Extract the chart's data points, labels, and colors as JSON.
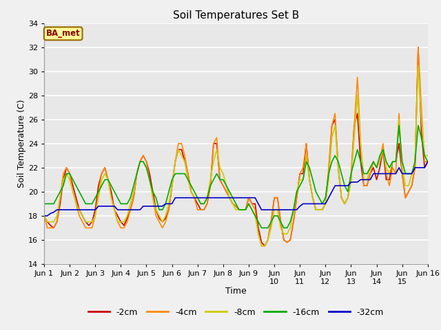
{
  "title": "Soil Temperatures Set B",
  "xlabel": "Time",
  "ylabel": "Soil Temperature (C)",
  "ylim": [
    14,
    34
  ],
  "yticks": [
    14,
    16,
    18,
    20,
    22,
    24,
    26,
    28,
    30,
    32,
    34
  ],
  "xlim": [
    0,
    15
  ],
  "xtick_labels": [
    "Jun 1",
    "Jun 2",
    "Jun 3",
    "Jun 4",
    "Jun 5",
    "Jun 6",
    "Jun 7",
    "Jun 8",
    "Jun 9",
    "Jun\n10",
    "Jun\n11",
    "Jun\n12",
    "Jun\n13",
    "Jun\n14",
    "Jun\n15",
    "Jun 16"
  ],
  "annotation": "BA_met",
  "figure_bg": "#f0f0f0",
  "plot_bg": "#e8e8e8",
  "grid_color": "#ffffff",
  "series_colors": [
    "#cc0000",
    "#ff8800",
    "#cccc00",
    "#00aa00",
    "#0000cc"
  ],
  "series_labels": [
    "-2cm",
    "-4cm",
    "-8cm",
    "-16cm",
    "-32cm"
  ],
  "linewidth": 1.2,
  "x": [
    0.0,
    0.125,
    0.25,
    0.375,
    0.5,
    0.625,
    0.75,
    0.875,
    1.0,
    1.125,
    1.25,
    1.375,
    1.5,
    1.625,
    1.75,
    1.875,
    2.0,
    2.125,
    2.25,
    2.375,
    2.5,
    2.625,
    2.75,
    2.875,
    3.0,
    3.125,
    3.25,
    3.375,
    3.5,
    3.625,
    3.75,
    3.875,
    4.0,
    4.125,
    4.25,
    4.375,
    4.5,
    4.625,
    4.75,
    4.875,
    5.0,
    5.125,
    5.25,
    5.375,
    5.5,
    5.625,
    5.75,
    5.875,
    6.0,
    6.125,
    6.25,
    6.375,
    6.5,
    6.625,
    6.75,
    6.875,
    7.0,
    7.125,
    7.25,
    7.375,
    7.5,
    7.625,
    7.75,
    7.875,
    8.0,
    8.125,
    8.25,
    8.375,
    8.5,
    8.625,
    8.75,
    8.875,
    9.0,
    9.125,
    9.25,
    9.375,
    9.5,
    9.625,
    9.75,
    9.875,
    10.0,
    10.125,
    10.25,
    10.375,
    10.5,
    10.625,
    10.75,
    10.875,
    11.0,
    11.125,
    11.25,
    11.375,
    11.5,
    11.625,
    11.75,
    11.875,
    12.0,
    12.125,
    12.25,
    12.375,
    12.5,
    12.625,
    12.75,
    12.875,
    13.0,
    13.125,
    13.25,
    13.375,
    13.5,
    13.625,
    13.75,
    13.875,
    14.0,
    14.125,
    14.25,
    14.375,
    14.5,
    14.625,
    14.75,
    14.875,
    15.0
  ],
  "y_2cm": [
    18.0,
    17.5,
    17.2,
    17.0,
    17.5,
    19.0,
    21.0,
    22.0,
    21.5,
    20.5,
    19.5,
    18.5,
    18.0,
    17.5,
    17.2,
    17.5,
    18.5,
    20.5,
    21.5,
    22.0,
    21.0,
    20.0,
    18.5,
    18.0,
    17.5,
    17.2,
    17.8,
    18.5,
    19.5,
    21.5,
    22.5,
    23.0,
    22.5,
    21.5,
    20.0,
    18.5,
    17.8,
    17.5,
    17.8,
    18.5,
    20.5,
    22.5,
    23.5,
    23.5,
    22.5,
    21.5,
    20.0,
    19.5,
    19.0,
    18.5,
    18.5,
    19.0,
    20.5,
    24.0,
    24.0,
    21.0,
    20.5,
    20.0,
    19.5,
    19.0,
    18.8,
    18.5,
    18.5,
    18.5,
    19.5,
    19.0,
    19.0,
    17.0,
    15.8,
    15.5,
    16.0,
    17.5,
    19.5,
    19.5,
    17.5,
    16.0,
    15.8,
    16.0,
    17.5,
    19.5,
    21.5,
    21.5,
    24.0,
    21.0,
    19.5,
    18.5,
    18.5,
    18.5,
    19.0,
    21.5,
    25.5,
    26.0,
    22.0,
    19.5,
    19.0,
    19.5,
    21.0,
    25.5,
    26.5,
    22.5,
    20.5,
    20.5,
    21.5,
    22.0,
    21.0,
    22.0,
    23.5,
    21.0,
    21.0,
    22.5,
    22.5,
    24.0,
    21.5,
    19.5,
    20.0,
    20.5,
    22.0,
    32.0,
    25.0,
    22.0,
    22.5
  ],
  "y_4cm": [
    18.0,
    17.0,
    17.0,
    17.0,
    17.5,
    19.5,
    21.5,
    22.0,
    21.5,
    20.0,
    19.0,
    18.0,
    17.5,
    17.0,
    17.0,
    17.0,
    18.0,
    20.0,
    21.5,
    22.0,
    21.0,
    19.5,
    18.5,
    17.5,
    17.0,
    17.0,
    17.5,
    18.5,
    19.5,
    21.5,
    22.5,
    23.0,
    22.5,
    21.0,
    19.5,
    18.0,
    17.5,
    17.0,
    17.5,
    18.5,
    20.5,
    22.5,
    24.0,
    24.0,
    23.0,
    21.5,
    20.0,
    19.5,
    18.5,
    18.5,
    18.5,
    19.0,
    20.5,
    24.0,
    24.5,
    21.0,
    20.5,
    20.0,
    19.5,
    19.0,
    18.8,
    18.5,
    18.5,
    18.5,
    19.5,
    19.0,
    18.5,
    16.5,
    15.5,
    15.5,
    16.0,
    17.5,
    19.5,
    19.5,
    17.5,
    16.0,
    15.8,
    16.0,
    17.5,
    19.5,
    21.5,
    22.0,
    24.0,
    21.0,
    19.5,
    18.5,
    18.5,
    18.5,
    19.0,
    22.0,
    25.5,
    26.5,
    22.0,
    19.5,
    19.0,
    19.5,
    21.5,
    25.5,
    29.5,
    24.0,
    20.5,
    20.5,
    21.5,
    22.5,
    22.0,
    22.5,
    24.0,
    21.5,
    20.5,
    22.0,
    21.5,
    26.5,
    21.5,
    19.5,
    20.0,
    20.5,
    22.0,
    32.0,
    27.0,
    22.5,
    22.5
  ],
  "y_8cm": [
    18.0,
    17.5,
    17.5,
    17.5,
    18.0,
    19.5,
    21.0,
    21.5,
    21.0,
    20.0,
    19.0,
    18.5,
    18.0,
    17.5,
    17.5,
    17.5,
    18.0,
    19.5,
    21.0,
    21.5,
    21.0,
    19.5,
    18.5,
    17.5,
    17.5,
    17.5,
    18.0,
    19.0,
    20.0,
    21.5,
    22.5,
    22.5,
    22.0,
    21.0,
    19.5,
    18.5,
    18.0,
    17.5,
    18.0,
    19.0,
    20.5,
    22.5,
    23.5,
    23.0,
    22.5,
    21.0,
    20.0,
    19.5,
    19.5,
    19.0,
    19.0,
    19.5,
    21.0,
    22.5,
    23.5,
    22.0,
    21.5,
    20.5,
    19.5,
    19.0,
    18.5,
    18.5,
    18.5,
    18.5,
    19.0,
    18.5,
    18.0,
    16.5,
    15.5,
    15.5,
    16.0,
    17.0,
    18.5,
    18.5,
    17.0,
    16.5,
    16.5,
    17.0,
    18.5,
    20.0,
    21.0,
    21.0,
    23.0,
    21.0,
    19.5,
    18.5,
    18.5,
    18.5,
    19.0,
    21.0,
    24.5,
    25.5,
    22.0,
    19.5,
    19.0,
    19.5,
    21.0,
    24.5,
    28.0,
    24.0,
    21.0,
    21.0,
    22.0,
    22.5,
    22.0,
    22.5,
    23.5,
    22.0,
    21.5,
    22.5,
    22.5,
    26.0,
    22.0,
    20.5,
    20.5,
    21.5,
    22.5,
    30.5,
    26.0,
    23.0,
    23.0
  ],
  "y_16cm": [
    19.0,
    19.0,
    19.0,
    19.0,
    19.5,
    20.0,
    20.5,
    21.5,
    21.5,
    21.0,
    20.5,
    20.0,
    19.5,
    19.0,
    19.0,
    19.0,
    19.5,
    20.0,
    20.5,
    21.0,
    21.0,
    20.5,
    20.0,
    19.5,
    19.0,
    19.0,
    19.0,
    19.5,
    20.5,
    21.5,
    22.5,
    22.5,
    22.0,
    21.0,
    20.0,
    19.5,
    18.5,
    18.5,
    19.0,
    20.0,
    21.0,
    21.5,
    21.5,
    21.5,
    21.5,
    21.0,
    20.5,
    20.0,
    19.5,
    19.0,
    19.0,
    19.5,
    20.5,
    21.0,
    21.5,
    21.0,
    21.0,
    20.5,
    20.0,
    19.5,
    19.0,
    18.5,
    18.5,
    18.5,
    19.0,
    18.5,
    18.0,
    17.5,
    17.0,
    17.0,
    17.0,
    17.5,
    18.0,
    18.0,
    17.5,
    17.0,
    17.0,
    17.5,
    18.5,
    20.0,
    20.5,
    21.0,
    22.5,
    22.0,
    21.0,
    20.0,
    19.5,
    19.0,
    19.5,
    21.5,
    22.5,
    23.0,
    22.5,
    21.5,
    20.5,
    20.0,
    21.5,
    22.5,
    23.5,
    22.5,
    21.5,
    21.5,
    22.0,
    22.5,
    22.0,
    23.0,
    23.5,
    22.5,
    22.0,
    22.5,
    22.5,
    25.5,
    22.5,
    21.5,
    21.5,
    21.5,
    22.5,
    25.5,
    24.5,
    23.0,
    22.5
  ],
  "y_32cm": [
    18.0,
    18.0,
    18.2,
    18.3,
    18.5,
    18.5,
    18.5,
    18.5,
    18.5,
    18.5,
    18.5,
    18.5,
    18.5,
    18.5,
    18.5,
    18.5,
    18.5,
    18.8,
    18.8,
    18.8,
    18.8,
    18.8,
    18.8,
    18.5,
    18.5,
    18.5,
    18.5,
    18.5,
    18.5,
    18.5,
    18.5,
    18.8,
    18.8,
    18.8,
    18.8,
    18.8,
    18.8,
    18.8,
    19.0,
    19.0,
    19.0,
    19.5,
    19.5,
    19.5,
    19.5,
    19.5,
    19.5,
    19.5,
    19.5,
    19.5,
    19.5,
    19.5,
    19.5,
    19.5,
    19.5,
    19.5,
    19.5,
    19.5,
    19.5,
    19.5,
    19.5,
    19.5,
    19.5,
    19.5,
    19.5,
    19.5,
    19.5,
    19.0,
    18.5,
    18.5,
    18.5,
    18.5,
    18.5,
    18.5,
    18.5,
    18.5,
    18.5,
    18.5,
    18.5,
    18.5,
    18.8,
    19.0,
    19.0,
    19.0,
    19.0,
    19.0,
    19.0,
    19.0,
    19.0,
    19.5,
    20.0,
    20.5,
    20.5,
    20.5,
    20.5,
    20.5,
    20.8,
    20.8,
    20.8,
    21.0,
    21.0,
    21.0,
    21.0,
    21.5,
    21.5,
    21.5,
    21.5,
    21.5,
    21.5,
    21.5,
    21.5,
    22.0,
    21.5,
    21.5,
    21.5,
    21.5,
    22.0,
    22.0,
    22.0,
    22.0,
    22.5
  ]
}
